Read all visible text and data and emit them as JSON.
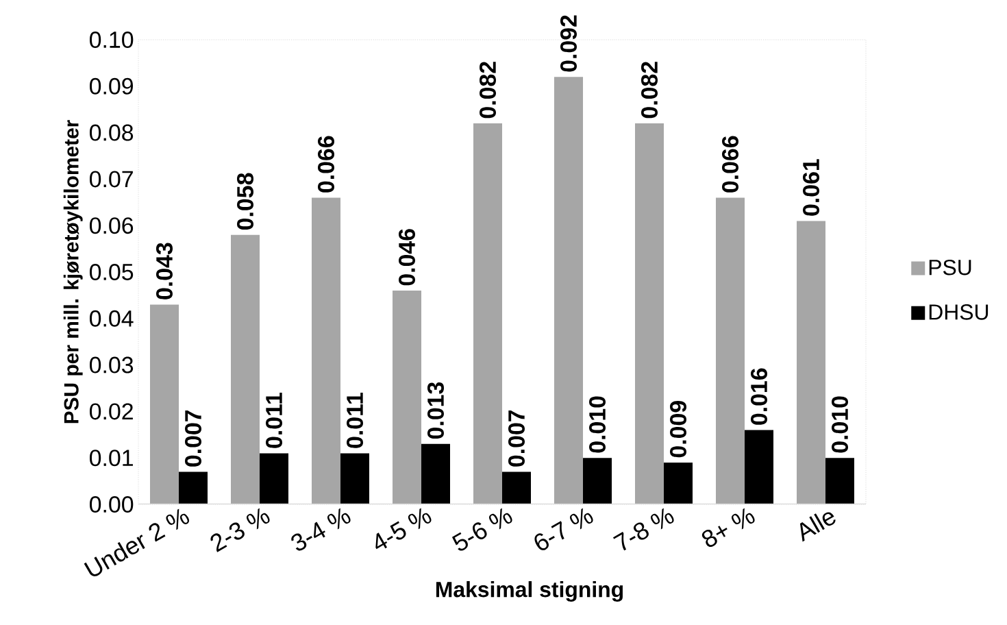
{
  "chart_data": {
    "type": "bar",
    "xlabel": "Maksimal stigning",
    "ylabel": "PSU per mill. kjøretøykilometer",
    "categories": [
      "Under 2 %",
      "2-3 %",
      "3-4 %",
      "4-5 %",
      "5-6 %",
      "6-7 %",
      "7-8 %",
      "8+ %",
      "Alle"
    ],
    "series": [
      {
        "name": "PSU",
        "color": "#a6a6a6",
        "values": [
          0.043,
          0.058,
          0.066,
          0.046,
          0.082,
          0.092,
          0.082,
          0.066,
          0.061
        ],
        "value_labels": [
          "0.043",
          "0.058",
          "0.066",
          "0.046",
          "0.082",
          "0.092",
          "0.082",
          "0.066",
          "0.061"
        ]
      },
      {
        "name": "DHSU",
        "color": "#000000",
        "values": [
          0.007,
          0.011,
          0.011,
          0.013,
          0.007,
          0.01,
          0.009,
          0.016,
          0.01
        ],
        "value_labels": [
          "0.007",
          "0.011",
          "0.011",
          "0.013",
          "0.007",
          "0.010",
          "0.009",
          "0.016",
          "0.010"
        ]
      }
    ],
    "ylim": [
      0,
      0.1
    ],
    "yticks": [
      {
        "value": 0,
        "label": "0.00"
      },
      {
        "value": 0.01,
        "label": "0.01"
      },
      {
        "value": 0.02,
        "label": "0.02"
      },
      {
        "value": 0.03,
        "label": "0.03"
      },
      {
        "value": 0.04,
        "label": "0.04"
      },
      {
        "value": 0.05,
        "label": "0.05"
      },
      {
        "value": 0.06,
        "label": "0.06"
      },
      {
        "value": 0.07,
        "label": "0.07"
      },
      {
        "value": 0.08,
        "label": "0.08"
      },
      {
        "value": 0.09,
        "label": "0.09"
      },
      {
        "value": 0.1,
        "label": "0.10"
      }
    ],
    "legend": "right"
  }
}
